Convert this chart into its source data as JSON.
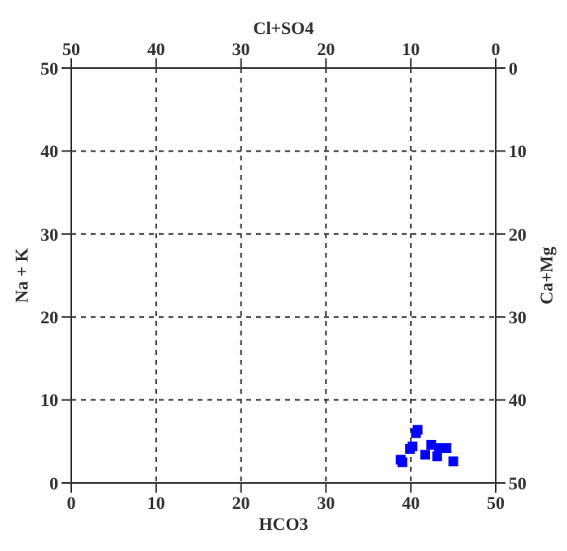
{
  "chart_data": {
    "type": "scatter",
    "xlabel": "HCO3",
    "ylabel": "Na + K",
    "x2label": "Cl+SO4",
    "y2label": "Ca+Mg",
    "x": [
      38.8,
      39.0,
      39.9,
      40.2,
      40.8,
      40.6,
      41.7,
      42.4,
      43.1,
      43.3,
      44.2,
      45.0
    ],
    "values": [
      2.8,
      2.5,
      4.1,
      4.4,
      6.4,
      6.0,
      3.4,
      4.6,
      3.2,
      4.2,
      4.2,
      2.6
    ],
    "color": "#0000ff",
    "marker": "square",
    "grid": true,
    "line_style": "dashed",
    "xlim": [
      0,
      50
    ],
    "xticks": [
      0,
      10,
      20,
      30,
      40,
      50
    ],
    "ylim": [
      0,
      50
    ],
    "yticks": [
      0,
      10,
      20,
      30,
      40,
      50
    ],
    "x2lim": [
      50,
      0
    ],
    "x2ticks": [
      50,
      40,
      30,
      20,
      10,
      0
    ],
    "y2lim": [
      50,
      0
    ],
    "y2ticks": [
      0,
      10,
      20,
      30,
      40,
      50
    ]
  }
}
